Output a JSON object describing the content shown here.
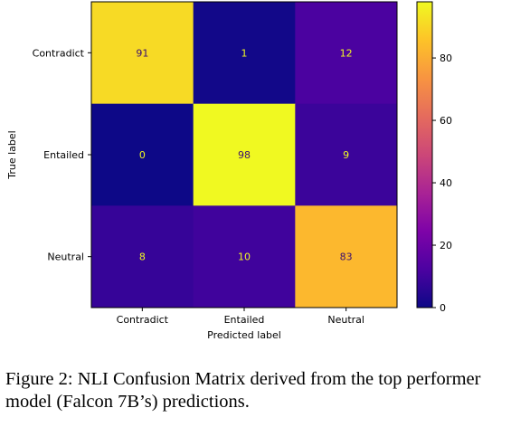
{
  "chart_data": {
    "type": "heatmap",
    "title": "",
    "xlabel": "Predicted label",
    "ylabel": "True label",
    "x_categories": [
      "Contradict",
      "Entailed",
      "Neutral"
    ],
    "y_categories": [
      "Contradict",
      "Entailed",
      "Neutral"
    ],
    "values": [
      [
        91,
        1,
        12
      ],
      [
        0,
        98,
        9
      ],
      [
        8,
        10,
        83
      ]
    ],
    "colormap": "plasma",
    "colorbar": {
      "ticks": [
        0,
        20,
        40,
        60,
        80
      ],
      "range": [
        0,
        98
      ]
    },
    "grid": false
  },
  "caption": "Figure 2: NLI Confusion Matrix derived from the top performer model (Falcon 7B’s) predictions."
}
